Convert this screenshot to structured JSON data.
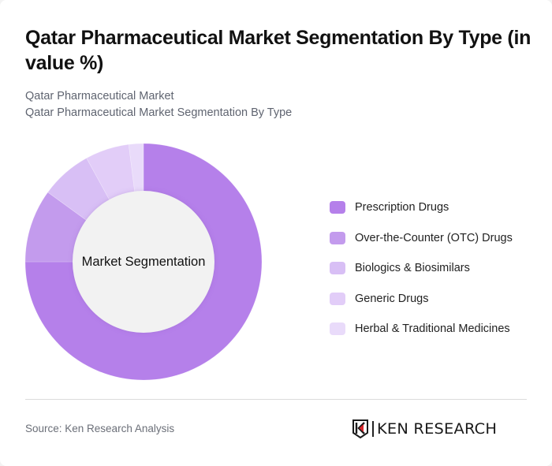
{
  "header": {
    "title": "Qatar Pharmaceutical Market Segmentation By Type (in value %)",
    "breadcrumb": [
      "Qatar Pharmaceutical Market",
      "Qatar Pharmaceutical Market Segmentation By Type"
    ]
  },
  "chart": {
    "center_label": "Market Segmentation"
  },
  "legend": {
    "items": [
      {
        "label": "Prescription Drugs",
        "color": "#b580ea"
      },
      {
        "label": "Over-the-Counter (OTC) Drugs",
        "color": "#c39bed"
      },
      {
        "label": "Biologics & Biosimilars",
        "color": "#d8bff5"
      },
      {
        "label": "Generic Drugs",
        "color": "#e2cdf8"
      },
      {
        "label": "Herbal & Traditional Medicines",
        "color": "#e9dbfa"
      }
    ]
  },
  "footer": {
    "source": "Source: Ken Research Analysis",
    "logo_text": "KEN RESEARCH"
  },
  "chart_data": {
    "type": "pie",
    "subtype": "donut",
    "title": "Qatar Pharmaceutical Market Segmentation By Type (in value %)",
    "subtitle": "Qatar Pharmaceutical Market / Qatar Pharmaceutical Market Segmentation By Type",
    "center_label": "Market Segmentation",
    "categories": [
      "Prescription Drugs",
      "Over-the-Counter (OTC) Drugs",
      "Biologics & Biosimilars",
      "Generic Drugs",
      "Herbal & Traditional Medicines"
    ],
    "values": [
      75,
      10,
      7,
      6,
      2
    ],
    "unit": "%",
    "colors": [
      "#b580ea",
      "#c39bed",
      "#d8bff5",
      "#e2cdf8",
      "#e9dbfa"
    ],
    "start_angle": "12 o'clock, clockwise",
    "legend_position": "right",
    "source": "Source: Ken Research Analysis"
  }
}
